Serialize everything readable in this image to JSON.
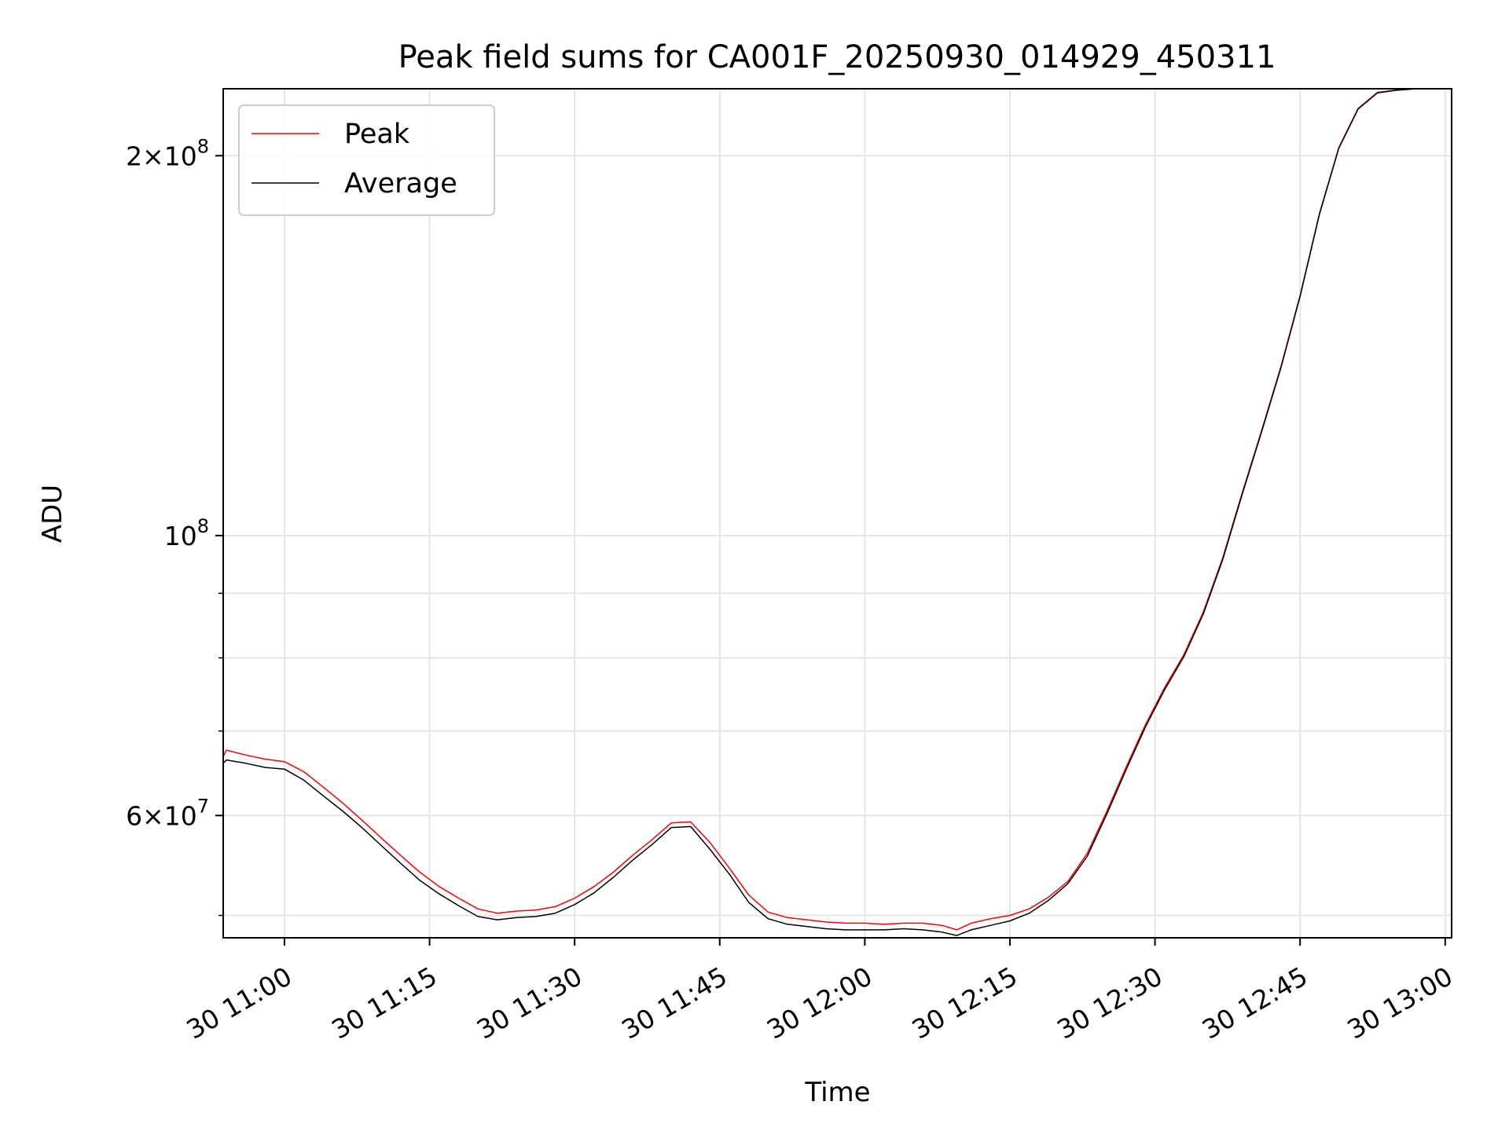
{
  "chart_data": {
    "type": "line",
    "title": "Peak field sums for CA001F_20250930_014929_450311",
    "xlabel": "Time",
    "ylabel": "ADU",
    "y_scale": "log",
    "ylim": [
      48000000,
      226000000
    ],
    "xlim": [
      "2025-09-30 10:53:40",
      "2025-09-30 13:00:40"
    ],
    "x_ticks": [
      {
        "value": "2025-09-30 11:00",
        "label": "30 11:00"
      },
      {
        "value": "2025-09-30 11:15",
        "label": "30 11:15"
      },
      {
        "value": "2025-09-30 11:30",
        "label": "30 11:30"
      },
      {
        "value": "2025-09-30 11:45",
        "label": "30 11:45"
      },
      {
        "value": "2025-09-30 12:00",
        "label": "30 12:00"
      },
      {
        "value": "2025-09-30 12:15",
        "label": "30 12:15"
      },
      {
        "value": "2025-09-30 12:30",
        "label": "30 12:30"
      },
      {
        "value": "2025-09-30 12:45",
        "label": "30 12:45"
      },
      {
        "value": "2025-09-30 13:00",
        "label": "30 13:00"
      }
    ],
    "y_ticks_major": [
      {
        "value": 100000000,
        "base": "10",
        "exp": "8"
      },
      {
        "value": 200000000,
        "mant": "2",
        "base": "10",
        "exp": "8"
      },
      {
        "value": 60000000,
        "mant": "6",
        "base": "10",
        "exp": "7"
      }
    ],
    "y_ticks_minor": [
      50000000,
      70000000,
      80000000,
      90000000
    ],
    "grid": true,
    "legend_position": "top-left",
    "series": [
      {
        "name": "Peak",
        "color": "#ff0000",
        "x": [
          "2025-09-30 10:53:40",
          "2025-09-30 10:54:00",
          "2025-09-30 10:56:00",
          "2025-09-30 10:58:00",
          "2025-09-30 11:00:00",
          "2025-09-30 11:02:00",
          "2025-09-30 11:04:00",
          "2025-09-30 11:06:00",
          "2025-09-30 11:08:00",
          "2025-09-30 11:10:00",
          "2025-09-30 11:12:00",
          "2025-09-30 11:14:00",
          "2025-09-30 11:16:00",
          "2025-09-30 11:18:00",
          "2025-09-30 11:20:00",
          "2025-09-30 11:22:00",
          "2025-09-30 11:24:00",
          "2025-09-30 11:26:00",
          "2025-09-30 11:28:00",
          "2025-09-30 11:30:00",
          "2025-09-30 11:32:00",
          "2025-09-30 11:34:00",
          "2025-09-30 11:36:00",
          "2025-09-30 11:38:00",
          "2025-09-30 11:40:00",
          "2025-09-30 11:42:00",
          "2025-09-30 11:44:00",
          "2025-09-30 11:46:00",
          "2025-09-30 11:48:00",
          "2025-09-30 11:50:00",
          "2025-09-30 11:52:00",
          "2025-09-30 11:54:00",
          "2025-09-30 11:56:00",
          "2025-09-30 11:58:00",
          "2025-09-30 12:00:00",
          "2025-09-30 12:02:00",
          "2025-09-30 12:04:00",
          "2025-09-30 12:06:00",
          "2025-09-30 12:08:00",
          "2025-09-30 12:09:30",
          "2025-09-30 12:11:00",
          "2025-09-30 12:13:00",
          "2025-09-30 12:15:00",
          "2025-09-30 12:17:00",
          "2025-09-30 12:19:00",
          "2025-09-30 12:21:00",
          "2025-09-30 12:23:00",
          "2025-09-30 12:25:00",
          "2025-09-30 12:27:00",
          "2025-09-30 12:29:00",
          "2025-09-30 12:31:00",
          "2025-09-30 12:33:00",
          "2025-09-30 12:35:00",
          "2025-09-30 12:37:00",
          "2025-09-30 12:39:00",
          "2025-09-30 12:41:00",
          "2025-09-30 12:43:00",
          "2025-09-30 12:45:00",
          "2025-09-30 12:47:00",
          "2025-09-30 12:49:00",
          "2025-09-30 12:51:00",
          "2025-09-30 12:53:00",
          "2025-09-30 12:55:00",
          "2025-09-30 12:57:00",
          "2025-09-30 13:00:40"
        ],
        "y": [
          66800000,
          67600000,
          67000000,
          66500000,
          66200000,
          65000000,
          63200000,
          61400000,
          59500000,
          57600000,
          55800000,
          54100000,
          52700000,
          51600000,
          50600000,
          50200000,
          50400000,
          50500000,
          50800000,
          51600000,
          52700000,
          54100000,
          55800000,
          57400000,
          59200000,
          59300000,
          57100000,
          54500000,
          51900000,
          50300000,
          49800000,
          49600000,
          49400000,
          49300000,
          49300000,
          49200000,
          49300000,
          49300000,
          49100000,
          48700000,
          49300000,
          49700000,
          50000000,
          50600000,
          51700000,
          53200000,
          56000000,
          60400000,
          65500000,
          70800000,
          75800000,
          80500000,
          87000000,
          96000000,
          108000000,
          121000000,
          136000000,
          155000000,
          180000000,
          203000000,
          218000000,
          224500000,
          225500000,
          226000000,
          226000000
        ]
      },
      {
        "name": "Average",
        "color": "#000000",
        "x": [
          "2025-09-30 10:53:40",
          "2025-09-30 10:54:00",
          "2025-09-30 10:56:00",
          "2025-09-30 10:58:00",
          "2025-09-30 11:00:00",
          "2025-09-30 11:02:00",
          "2025-09-30 11:04:00",
          "2025-09-30 11:06:00",
          "2025-09-30 11:08:00",
          "2025-09-30 11:10:00",
          "2025-09-30 11:12:00",
          "2025-09-30 11:14:00",
          "2025-09-30 11:16:00",
          "2025-09-30 11:18:00",
          "2025-09-30 11:20:00",
          "2025-09-30 11:22:00",
          "2025-09-30 11:24:00",
          "2025-09-30 11:26:00",
          "2025-09-30 11:28:00",
          "2025-09-30 11:30:00",
          "2025-09-30 11:32:00",
          "2025-09-30 11:34:00",
          "2025-09-30 11:36:00",
          "2025-09-30 11:38:00",
          "2025-09-30 11:40:00",
          "2025-09-30 11:42:00",
          "2025-09-30 11:44:00",
          "2025-09-30 11:46:00",
          "2025-09-30 11:48:00",
          "2025-09-30 11:50:00",
          "2025-09-30 11:52:00",
          "2025-09-30 11:54:00",
          "2025-09-30 11:56:00",
          "2025-09-30 11:58:00",
          "2025-09-30 12:00:00",
          "2025-09-30 12:02:00",
          "2025-09-30 12:04:00",
          "2025-09-30 12:06:00",
          "2025-09-30 12:08:00",
          "2025-09-30 12:09:30",
          "2025-09-30 12:11:00",
          "2025-09-30 12:13:00",
          "2025-09-30 12:15:00",
          "2025-09-30 12:17:00",
          "2025-09-30 12:19:00",
          "2025-09-30 12:21:00",
          "2025-09-30 12:23:00",
          "2025-09-30 12:25:00",
          "2025-09-30 12:27:00",
          "2025-09-30 12:29:00",
          "2025-09-30 12:31:00",
          "2025-09-30 12:33:00",
          "2025-09-30 12:35:00",
          "2025-09-30 12:37:00",
          "2025-09-30 12:39:00",
          "2025-09-30 12:41:00",
          "2025-09-30 12:43:00",
          "2025-09-30 12:45:00",
          "2025-09-30 12:47:00",
          "2025-09-30 12:49:00",
          "2025-09-30 12:51:00",
          "2025-09-30 12:53:00",
          "2025-09-30 12:55:00",
          "2025-09-30 12:57:00",
          "2025-09-30 13:00:40"
        ],
        "y": [
          66000000,
          66400000,
          66000000,
          65500000,
          65300000,
          64000000,
          62200000,
          60500000,
          58700000,
          56800000,
          55000000,
          53300000,
          52000000,
          50900000,
          49900000,
          49600000,
          49800000,
          49900000,
          50200000,
          51000000,
          52100000,
          53600000,
          55300000,
          56900000,
          58700000,
          58800000,
          56400000,
          53900000,
          51200000,
          49700000,
          49200000,
          49000000,
          48800000,
          48700000,
          48700000,
          48700000,
          48800000,
          48700000,
          48500000,
          48200000,
          48700000,
          49100000,
          49500000,
          50200000,
          51400000,
          53000000,
          55700000,
          60100000,
          65200000,
          70500000,
          75500000,
          80200000,
          86700000,
          95700000,
          107700000,
          120700000,
          135700000,
          154700000,
          179700000,
          202700000,
          217800000,
          224300000,
          225400000,
          226000000,
          226000000
        ]
      }
    ]
  }
}
